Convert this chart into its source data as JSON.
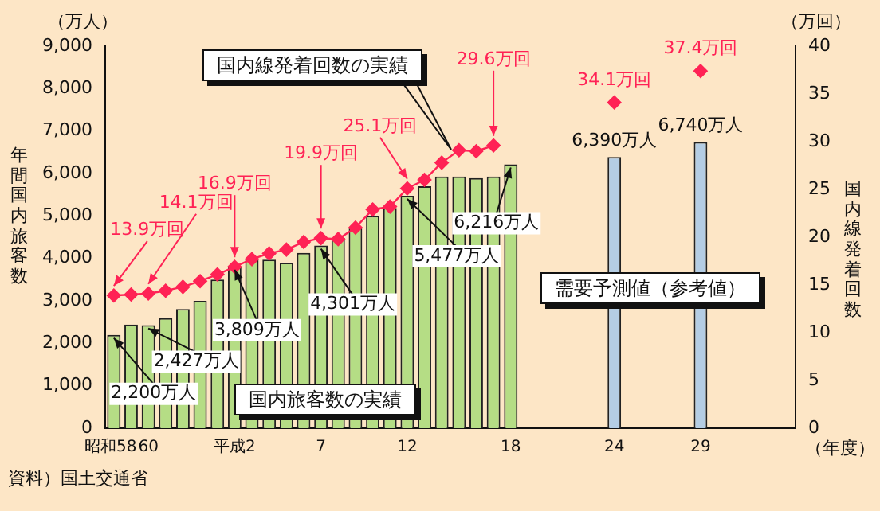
{
  "chart_data": {
    "type": "bar",
    "categories": [
      "昭和58",
      null,
      "60",
      null,
      null,
      null,
      null,
      "平成2",
      null,
      null,
      null,
      null,
      "7",
      null,
      null,
      null,
      null,
      "12",
      null,
      null,
      null,
      null,
      null,
      "18",
      null,
      null,
      null,
      null,
      null,
      "24",
      null,
      null,
      null,
      null,
      "29",
      null,
      null,
      null,
      null,
      null
    ],
    "series": [
      {
        "type": "bar",
        "values": [
          2200,
          2440,
          2427,
          2590,
          2810,
          3000,
          3500,
          3809,
          3980,
          3970,
          3900,
          4130,
          4301,
          4480,
          4720,
          5000,
          5190,
          5477,
          5700,
          5930,
          5930,
          5890,
          5930,
          6216,
          null,
          null,
          null,
          null,
          null,
          6390,
          null,
          null,
          null,
          null,
          6740,
          null,
          null,
          null,
          null,
          null
        ],
        "colors": [
          "#b5dd85",
          "#b5dd85",
          "#b5dd85",
          "#b5dd85",
          "#b5dd85",
          "#b5dd85",
          "#b5dd85",
          "#b5dd85",
          "#b5dd85",
          "#b5dd85",
          "#b5dd85",
          "#b5dd85",
          "#b5dd85",
          "#b5dd85",
          "#b5dd85",
          "#b5dd85",
          "#b5dd85",
          "#b5dd85",
          "#b5dd85",
          "#b5dd85",
          "#b5dd85",
          "#b5dd85",
          "#b5dd85",
          "#b5dd85",
          null,
          null,
          null,
          null,
          null,
          "#b4cde4",
          null,
          null,
          null,
          null,
          "#b4cde4",
          null,
          null,
          null,
          null,
          null
        ],
        "value_labels": [
          "2,200万人",
          null,
          "2,427万人",
          null,
          null,
          null,
          null,
          "3,809万人",
          null,
          null,
          null,
          null,
          "4,301万人",
          null,
          null,
          null,
          null,
          "5,477万人",
          null,
          null,
          null,
          null,
          null,
          "6,216万人",
          null,
          null,
          null,
          null,
          null,
          "6,390万人",
          null,
          null,
          null,
          null,
          "6,740万人",
          null,
          null,
          null,
          null,
          null
        ]
      },
      {
        "type": "line",
        "axis": "y2",
        "color": "#ff2255",
        "marker": "diamond",
        "values": [
          13.9,
          14.0,
          14.1,
          14.4,
          14.8,
          15.4,
          16.1,
          16.9,
          17.7,
          18.3,
          18.7,
          19.5,
          19.9,
          19.8,
          21.0,
          22.9,
          23.2,
          25.1,
          26.0,
          27.8,
          29.1,
          29.0,
          29.6,
          null,
          null,
          null,
          null,
          null,
          null,
          34.1,
          null,
          null,
          null,
          null,
          37.4,
          null,
          null,
          null,
          null,
          null
        ],
        "value_labels": [
          "13.9万回",
          null,
          "14.1万回",
          null,
          null,
          null,
          null,
          "16.9万回",
          null,
          null,
          null,
          null,
          "19.9万回",
          null,
          null,
          null,
          null,
          "25.1万回",
          null,
          null,
          null,
          null,
          "29.6万回",
          null,
          null,
          null,
          null,
          null,
          null,
          "34.1万回",
          null,
          null,
          null,
          null,
          "37.4万回",
          null,
          null,
          null,
          null,
          null
        ]
      }
    ],
    "ylim": [
      0,
      9000
    ],
    "yticks": [
      0,
      {
        "value": 1000,
        "label": "1,000"
      },
      {
        "value": 2000,
        "label": "2,000"
      },
      {
        "value": 3000,
        "label": "3,000"
      },
      {
        "value": 4000,
        "label": "4,000"
      },
      {
        "value": 5000,
        "label": "5,000"
      },
      {
        "value": 6000,
        "label": "6,000"
      },
      {
        "value": 7000,
        "label": "7,000"
      },
      {
        "value": 8000,
        "label": "8,000"
      },
      {
        "value": 9000,
        "label": "9,000"
      }
    ],
    "y2lim": [
      0,
      40
    ],
    "y2ticks": [
      0,
      5,
      10,
      15,
      20,
      25,
      30,
      35,
      40
    ],
    "xlabel": "（年度）",
    "ylabel": "年間国内旅客数",
    "y2label": "国内線発着回数",
    "annotations": [
      "（万人）",
      "（万回）",
      "国内線発着回数の実績",
      "国内旅客数の実績",
      "需要予測値（参考値）",
      "資料）国土交通省"
    ],
    "grid": false,
    "legend": false
  }
}
